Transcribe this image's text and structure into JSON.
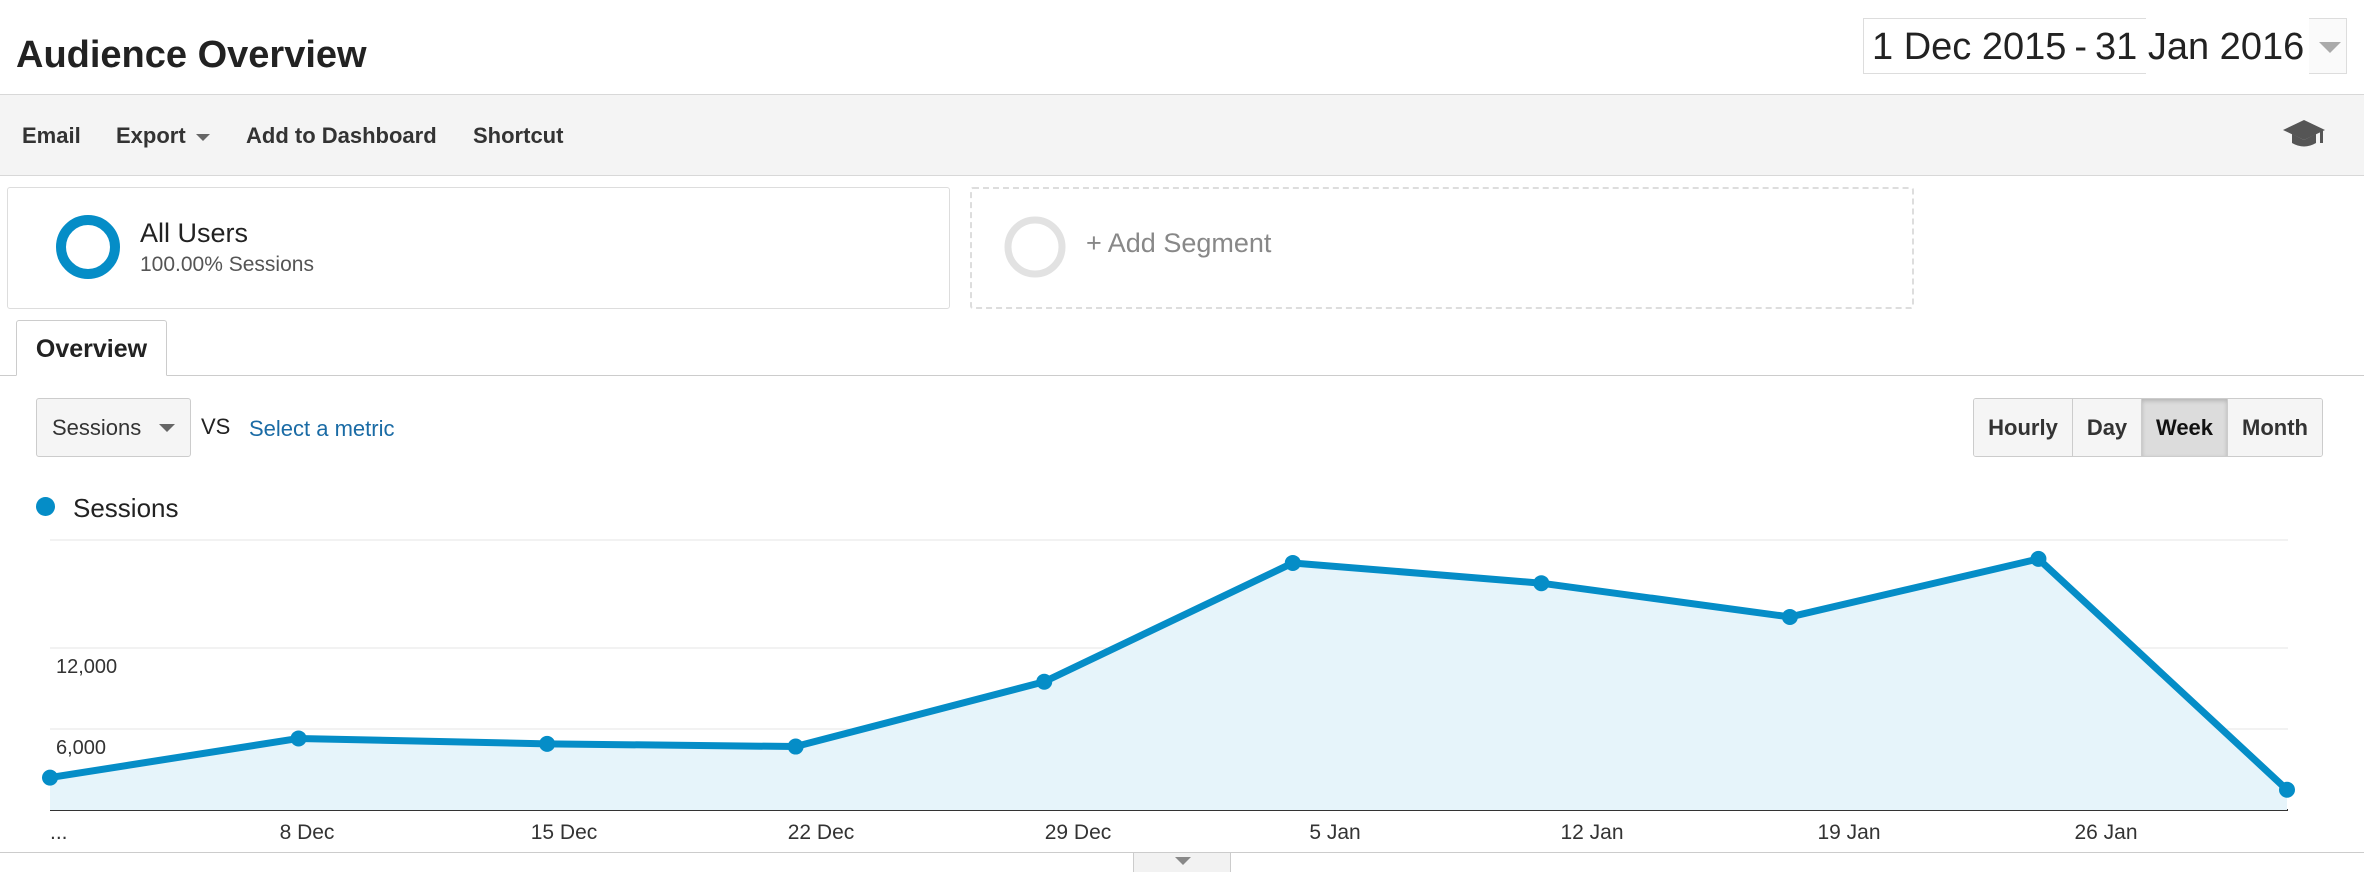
{
  "header": {
    "title": "Audience Overview",
    "date_range": {
      "start": "1 Dec 2015",
      "separator": "-",
      "end": "31 Jan 2016"
    }
  },
  "toolbar": {
    "items": [
      {
        "label": "Email",
        "has_caret": false
      },
      {
        "label": "Export",
        "has_caret": true
      },
      {
        "label": "Add to Dashboard",
        "has_caret": false
      },
      {
        "label": "Shortcut",
        "has_caret": false
      }
    ],
    "right_icon": "graduation-cap-icon"
  },
  "segments": {
    "active": {
      "name": "All Users",
      "detail": "100.00% Sessions",
      "color": "#058dc7"
    },
    "add_label": "+ Add Segment"
  },
  "tabs": [
    {
      "label": "Overview",
      "active": true
    }
  ],
  "controls": {
    "metric": "Sessions",
    "vs_label": "VS",
    "select_metric_label": "Select a metric",
    "granularity": [
      {
        "label": "Hourly",
        "active": false
      },
      {
        "label": "Day",
        "active": false
      },
      {
        "label": "Week",
        "active": true
      },
      {
        "label": "Month",
        "active": false
      }
    ]
  },
  "legend": {
    "label": "Sessions",
    "color": "#058dc7"
  },
  "chart_data": {
    "type": "area",
    "series": [
      {
        "name": "Sessions",
        "color": "#058dc7",
        "values": [
          2400,
          5300,
          4900,
          4700,
          9500,
          18300,
          16800,
          14300,
          18600,
          1500
        ]
      }
    ],
    "x_tick_labels": [
      "...",
      "8 Dec",
      "15 Dec",
      "22 Dec",
      "29 Dec",
      "5 Jan",
      "12 Jan",
      "19 Jan",
      "26 Jan"
    ],
    "y_tick_labels": [
      "12,000",
      "6,000"
    ],
    "y_ticks": [
      12000,
      6000
    ],
    "ylim": [
      0,
      20000
    ],
    "grid": true
  }
}
